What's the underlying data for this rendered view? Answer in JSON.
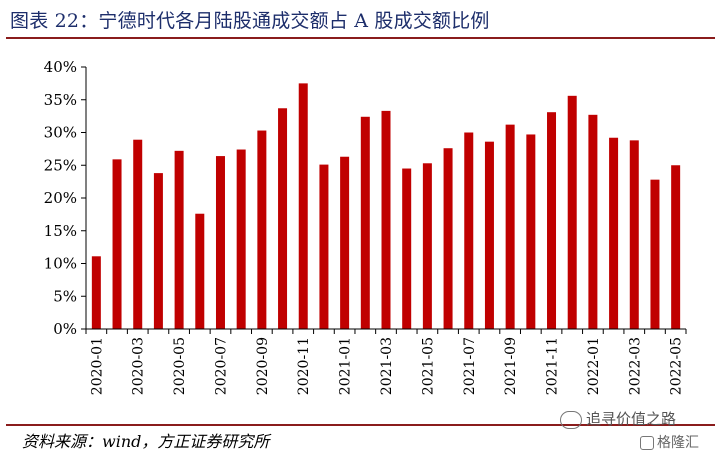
{
  "title": "图表 22：宁德时代各月陆股通成交额占 A 股成交额比例",
  "source": "资料来源：wind，方正证券研究所",
  "watermark": {
    "text": "追寻价值之路",
    "brand": "格隆汇"
  },
  "colors": {
    "bar": "#c00000",
    "title": "#1d2e6b",
    "rule": "#8a1c1c"
  },
  "chart_data": {
    "type": "bar",
    "title": "图表 22：宁德时代各月陆股通成交额占 A 股成交额比例",
    "xlabel": "",
    "ylabel": "",
    "ylim": [
      0,
      40
    ],
    "y_ticks": [
      "0%",
      "5%",
      "10%",
      "15%",
      "20%",
      "25%",
      "30%",
      "35%",
      "40%"
    ],
    "categories": [
      "2020-01",
      "2020-02",
      "2020-03",
      "2020-04",
      "2020-05",
      "2020-06",
      "2020-07",
      "2020-08",
      "2020-09",
      "2020-10",
      "2020-11",
      "2020-12",
      "2021-01",
      "2021-02",
      "2021-03",
      "2021-04",
      "2021-05",
      "2021-06",
      "2021-07",
      "2021-08",
      "2021-09",
      "2021-10",
      "2021-11",
      "2021-12",
      "2022-01",
      "2022-02",
      "2022-03",
      "2022-04",
      "2022-05"
    ],
    "x_tick_labels": [
      "2020-01",
      "2020-03",
      "2020-05",
      "2020-07",
      "2020-09",
      "2020-11",
      "2021-01",
      "2021-03",
      "2021-05",
      "2021-07",
      "2021-09",
      "2021-11",
      "2022-01",
      "2022-03",
      "2022-05"
    ],
    "values": [
      11.1,
      25.9,
      28.9,
      23.8,
      27.2,
      17.6,
      26.4,
      27.4,
      30.3,
      33.7,
      37.5,
      25.1,
      26.3,
      32.4,
      33.3,
      24.5,
      25.3,
      27.6,
      30.0,
      28.6,
      31.2,
      29.7,
      33.1,
      35.6,
      32.7,
      29.2,
      28.8,
      22.8,
      25.0
    ],
    "grid": false,
    "legend": "none"
  }
}
